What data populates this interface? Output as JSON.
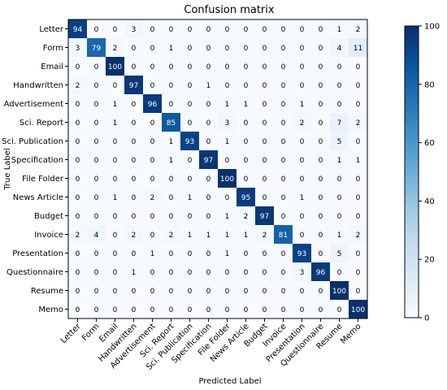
{
  "chart_data": {
    "type": "heatmap",
    "title": "Confusion matrix",
    "xlabel": "Predicted Label",
    "ylabel": "True Label",
    "labels": [
      "Letter",
      "Form",
      "Email",
      "Handwritten",
      "Advertisement",
      "Sci. Report",
      "Sci. Publication",
      "Specification",
      "File Folder",
      "News Article",
      "Budget",
      "Invoice",
      "Presentation",
      "Questionnaire",
      "Resume",
      "Memo"
    ],
    "matrix": [
      [
        94,
        0,
        0,
        3,
        0,
        0,
        0,
        0,
        0,
        0,
        0,
        0,
        0,
        0,
        1,
        2
      ],
      [
        3,
        79,
        2,
        0,
        0,
        1,
        0,
        0,
        0,
        0,
        0,
        0,
        0,
        0,
        4,
        11
      ],
      [
        0,
        0,
        100,
        0,
        0,
        0,
        0,
        0,
        0,
        0,
        0,
        0,
        0,
        0,
        0,
        0
      ],
      [
        2,
        0,
        0,
        97,
        0,
        0,
        0,
        1,
        0,
        0,
        0,
        0,
        0,
        0,
        0,
        0
      ],
      [
        0,
        0,
        1,
        0,
        96,
        0,
        0,
        0,
        1,
        1,
        0,
        0,
        1,
        0,
        0,
        0
      ],
      [
        0,
        0,
        1,
        0,
        0,
        85,
        0,
        0,
        3,
        0,
        0,
        0,
        2,
        0,
        7,
        2
      ],
      [
        0,
        0,
        0,
        0,
        0,
        1,
        93,
        0,
        1,
        0,
        0,
        0,
        0,
        0,
        5,
        0
      ],
      [
        0,
        0,
        0,
        0,
        0,
        1,
        0,
        97,
        0,
        0,
        0,
        0,
        0,
        0,
        1,
        1
      ],
      [
        0,
        0,
        0,
        0,
        0,
        0,
        0,
        0,
        100,
        0,
        0,
        0,
        0,
        0,
        0,
        0
      ],
      [
        0,
        0,
        1,
        0,
        2,
        0,
        1,
        0,
        0,
        95,
        0,
        0,
        1,
        0,
        0,
        0
      ],
      [
        0,
        0,
        0,
        0,
        0,
        0,
        0,
        0,
        1,
        2,
        97,
        0,
        0,
        0,
        0,
        0
      ],
      [
        2,
        4,
        0,
        2,
        0,
        2,
        1,
        1,
        1,
        1,
        2,
        81,
        0,
        0,
        1,
        2
      ],
      [
        0,
        0,
        0,
        0,
        1,
        0,
        0,
        0,
        1,
        0,
        0,
        0,
        93,
        0,
        5,
        0
      ],
      [
        0,
        0,
        0,
        1,
        0,
        0,
        0,
        0,
        0,
        0,
        0,
        0,
        3,
        96,
        0,
        0
      ],
      [
        0,
        0,
        0,
        0,
        0,
        0,
        0,
        0,
        0,
        0,
        0,
        0,
        0,
        0,
        100,
        0
      ],
      [
        0,
        0,
        0,
        0,
        0,
        0,
        0,
        0,
        0,
        0,
        0,
        0,
        0,
        0,
        0,
        100
      ]
    ],
    "colorbar": {
      "min": 0,
      "max": 100,
      "ticks": [
        0,
        20,
        40,
        60,
        80,
        100
      ]
    },
    "colormap": [
      "#f7fbff",
      "#deebf7",
      "#c6dbef",
      "#9ecae1",
      "#6baed6",
      "#4292c6",
      "#2171b5",
      "#08519c",
      "#08306b"
    ],
    "text_dark": "#000000",
    "text_light": "#ffffff"
  }
}
